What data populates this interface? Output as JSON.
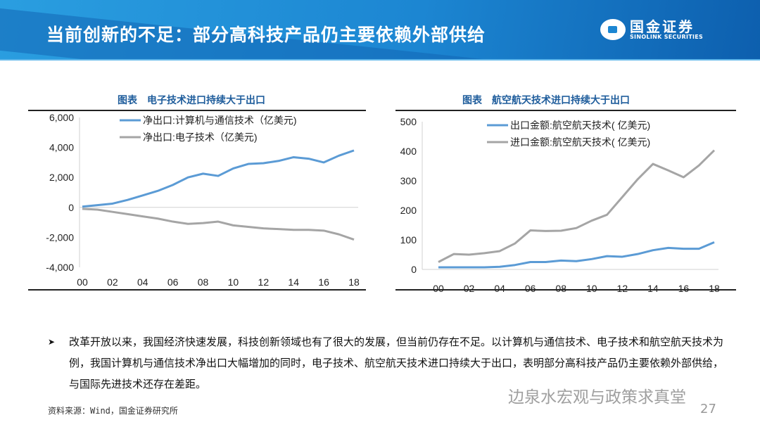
{
  "header": {
    "title": "当前创新的不足：部分高科技产品仍主要依赖外部供给",
    "logo_cn": "国金证券",
    "logo_en": "SINOLINK SECURITIES"
  },
  "colors": {
    "blue": "#5b9bd5",
    "gray": "#a5a5a5",
    "header": "#1c86d2"
  },
  "chart_data": [
    {
      "type": "line",
      "title": "图表　电子技术进口持续大于出口",
      "categories": [
        "00",
        "01",
        "02",
        "03",
        "04",
        "05",
        "06",
        "07",
        "08",
        "09",
        "10",
        "11",
        "12",
        "13",
        "14",
        "15",
        "16",
        "17",
        "18"
      ],
      "x_tick_labels": [
        "00",
        "02",
        "04",
        "06",
        "08",
        "10",
        "12",
        "14",
        "16",
        "18"
      ],
      "ylim": [
        -4000,
        6000
      ],
      "y_ticks": [
        "-4,000",
        "-2,000",
        "0",
        "2,000",
        "4,000",
        "6,000"
      ],
      "y_tick_values": [
        -4000,
        -2000,
        0,
        2000,
        4000,
        6000
      ],
      "legend": "top",
      "series": [
        {
          "name": "净出口:计算机与通信技术（亿美元)",
          "color": "#5b9bd5",
          "values": [
            50,
            150,
            250,
            500,
            800,
            1100,
            1500,
            2000,
            2250,
            2100,
            2600,
            2900,
            2950,
            3100,
            3350,
            3250,
            3000,
            3450,
            3800
          ]
        },
        {
          "name": "净出口:电子技术（亿美元)",
          "color": "#a5a5a5",
          "values": [
            -100,
            -150,
            -300,
            -450,
            -600,
            -750,
            -950,
            -1100,
            -1050,
            -950,
            -1200,
            -1300,
            -1400,
            -1450,
            -1500,
            -1500,
            -1550,
            -1800,
            -2150
          ]
        }
      ]
    },
    {
      "type": "line",
      "title": "图表　航空航天技术进口持续大于出口",
      "categories": [
        "00",
        "01",
        "02",
        "03",
        "04",
        "05",
        "06",
        "07",
        "08",
        "09",
        "10",
        "11",
        "12",
        "13",
        "14",
        "15",
        "16",
        "17",
        "18"
      ],
      "x_tick_labels": [
        "00",
        "02",
        "04",
        "06",
        "08",
        "10",
        "12",
        "14",
        "16",
        "18"
      ],
      "ylim": [
        0,
        500
      ],
      "y_ticks": [
        "0",
        "100",
        "200",
        "300",
        "400",
        "500"
      ],
      "y_tick_values": [
        0,
        100,
        200,
        300,
        400,
        500
      ],
      "legend": "top",
      "series": [
        {
          "name": "出口金额:航空航天技术( 亿美元)",
          "color": "#5b9bd5",
          "values": [
            7,
            7,
            7,
            7,
            9,
            15,
            25,
            25,
            30,
            28,
            35,
            45,
            43,
            52,
            65,
            73,
            70,
            70,
            92
          ]
        },
        {
          "name": "进口金额:航空航天技术( 亿美元)",
          "color": "#a5a5a5",
          "values": [
            25,
            52,
            50,
            55,
            62,
            88,
            132,
            130,
            131,
            140,
            165,
            185,
            245,
            305,
            357,
            335,
            312,
            352,
            403
          ]
        }
      ]
    }
  ],
  "body": {
    "bullet": "改革开放以来，我国经济快速发展，科技创新领域也有了很大的发展，但当前仍存在不足。以计算机与通信技术、电子技术和航空航天技术为例，我国计算机与通信技术净出口大幅增加的同时，电子技术、航空航天技术进口持续大于出口，表明部分高科技产品仍主要依赖外部供给，与国际先进技术还存在差距。",
    "source": "资料来源：Wind，国金证券研究所",
    "page": "27",
    "watermark": "边泉水宏观与政策求真堂"
  }
}
